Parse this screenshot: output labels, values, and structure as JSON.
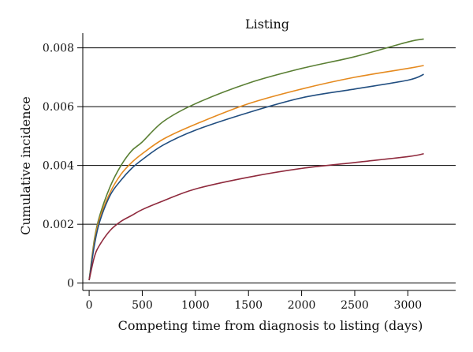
{
  "chart_data": {
    "type": "line",
    "title": "Listing",
    "xlabel": "Competing time from diagnosis to listing (days)",
    "ylabel": "Cumulative incidence",
    "xlim": [
      -60,
      3450
    ],
    "ylim": [
      -0.00025,
      0.0085
    ],
    "xticks": [
      0,
      500,
      1000,
      1500,
      2000,
      2500,
      3000
    ],
    "yticks": [
      0,
      0.002,
      0.004,
      0.006,
      0.008
    ],
    "ytick_labels": [
      "0",
      "0.002",
      "0.004",
      "0.006",
      "0.008"
    ],
    "grid": "horizontal",
    "series": [
      {
        "color": "#5a7f34",
        "x": [
          0,
          50,
          100,
          200,
          300,
          400,
          500,
          700,
          1000,
          1500,
          2000,
          2500,
          3000,
          3150
        ],
        "y": [
          0.0001,
          0.0015,
          0.0023,
          0.0033,
          0.004,
          0.0045,
          0.0048,
          0.0055,
          0.0061,
          0.0068,
          0.0073,
          0.0077,
          0.0082,
          0.0083
        ]
      },
      {
        "color": "#e58a1f",
        "x": [
          0,
          50,
          100,
          200,
          300,
          400,
          500,
          700,
          1000,
          1500,
          2000,
          2500,
          3000,
          3150
        ],
        "y": [
          0.0001,
          0.0014,
          0.0022,
          0.0031,
          0.0037,
          0.0041,
          0.0044,
          0.0049,
          0.0054,
          0.0061,
          0.0066,
          0.007,
          0.0073,
          0.0074
        ]
      },
      {
        "color": "#214e80",
        "x": [
          0,
          50,
          100,
          200,
          300,
          400,
          500,
          700,
          1000,
          1500,
          2000,
          2500,
          3000,
          3150
        ],
        "y": [
          0.0001,
          0.0013,
          0.0021,
          0.003,
          0.0035,
          0.0039,
          0.0042,
          0.0047,
          0.0052,
          0.0058,
          0.0063,
          0.0066,
          0.0069,
          0.0071
        ]
      },
      {
        "color": "#8f2a3d",
        "x": [
          0,
          50,
          100,
          200,
          300,
          400,
          500,
          700,
          1000,
          1500,
          2000,
          2500,
          3000,
          3150
        ],
        "y": [
          0.0001,
          0.0009,
          0.0013,
          0.0018,
          0.0021,
          0.0023,
          0.0025,
          0.0028,
          0.0032,
          0.0036,
          0.0039,
          0.0041,
          0.0043,
          0.0044
        ]
      }
    ]
  }
}
